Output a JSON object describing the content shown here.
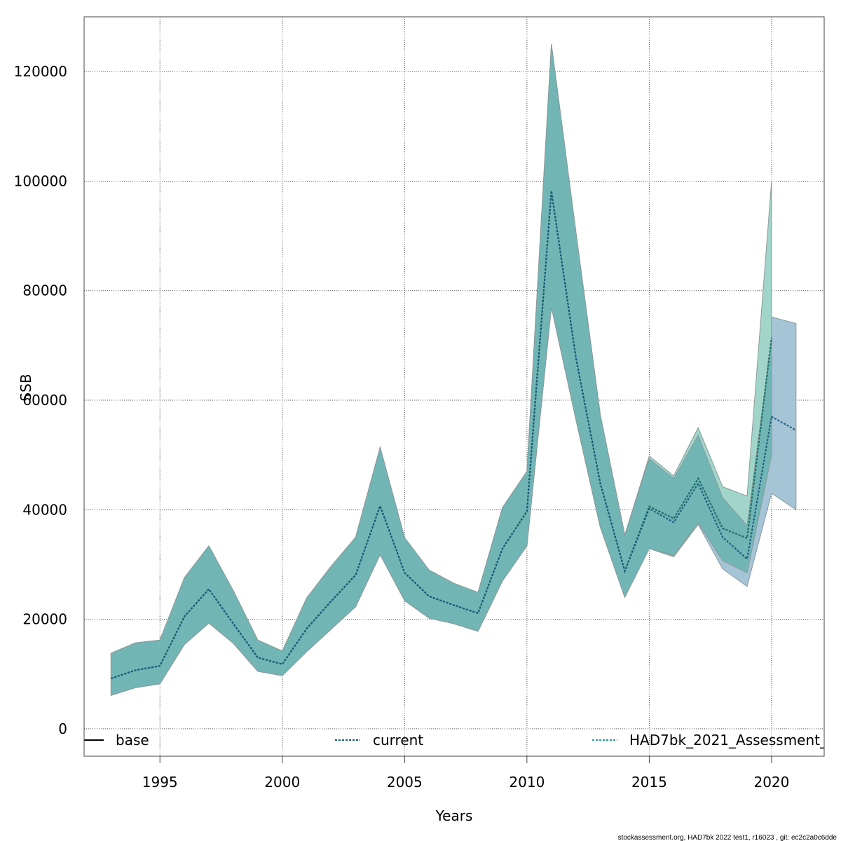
{
  "chart_data": {
    "type": "line",
    "title": "",
    "xlabel": "Years",
    "ylabel": "SSB",
    "xlim": [
      1991.9,
      2022.15
    ],
    "ylim": [
      -5000,
      130000
    ],
    "grid": true,
    "x_ticks": [
      1995,
      2000,
      2005,
      2010,
      2015,
      2020
    ],
    "y_ticks": [
      0,
      20000,
      40000,
      60000,
      80000,
      100000,
      120000
    ],
    "legend": {
      "placement": "bottom-inside",
      "entries": [
        "base",
        "current",
        "HAD7bk_2021_Assessment_"
      ]
    },
    "series": [
      {
        "name": "current",
        "line_color": "#1a5a7a",
        "band_color": "#a5c4d6",
        "years": [
          1993,
          1994,
          1995,
          1996,
          1997,
          1998,
          1999,
          2000,
          2001,
          2002,
          2003,
          2004,
          2005,
          2006,
          2007,
          2008,
          2009,
          2010,
          2011,
          2012,
          2013,
          2014,
          2015,
          2016,
          2017,
          2018,
          2019,
          2020,
          2021
        ],
        "values": [
          9200,
          10700,
          11500,
          20500,
          25500,
          19200,
          13000,
          11800,
          18300,
          23300,
          28100,
          40700,
          28500,
          24200,
          22600,
          21100,
          32900,
          39700,
          98200,
          67800,
          44800,
          28800,
          40200,
          37700,
          44800,
          35000,
          31000,
          57000,
          54500
        ],
        "lower": [
          6100,
          7500,
          8200,
          15400,
          19300,
          15600,
          10500,
          9700,
          14100,
          18200,
          22300,
          31800,
          23400,
          20200,
          19200,
          17800,
          27000,
          33400,
          77000,
          56500,
          36800,
          24000,
          32900,
          31400,
          37300,
          29200,
          26000,
          43000,
          40000
        ],
        "upper": [
          13800,
          15700,
          16200,
          27600,
          33400,
          25200,
          16200,
          14200,
          23900,
          29700,
          35000,
          51400,
          34900,
          29000,
          26600,
          24900,
          40400,
          47000,
          125000,
          90800,
          57300,
          35400,
          49000,
          45500,
          53400,
          42000,
          37000,
          75200,
          74000
        ]
      },
      {
        "name": "HAD7bk_2021_Assessment_",
        "line_color": "#1f7a72",
        "band_color": "#a1d5c9",
        "years": [
          1993,
          1994,
          1995,
          1996,
          1997,
          1998,
          1999,
          2000,
          2001,
          2002,
          2003,
          2004,
          2005,
          2006,
          2007,
          2008,
          2009,
          2010,
          2011,
          2012,
          2013,
          2014,
          2015,
          2016,
          2017,
          2018,
          2019,
          2020
        ],
        "values": [
          9200,
          10700,
          11500,
          20500,
          25500,
          19200,
          13000,
          11800,
          18300,
          23300,
          28100,
          40700,
          28500,
          24200,
          22600,
          21100,
          32900,
          39700,
          98200,
          67800,
          44800,
          28800,
          40600,
          38400,
          45700,
          36600,
          34800,
          71400
        ],
        "lower": [
          6100,
          7500,
          8200,
          15400,
          19300,
          15600,
          10500,
          9700,
          14100,
          18200,
          22300,
          31800,
          23400,
          20200,
          19200,
          17800,
          27000,
          33400,
          77000,
          56500,
          36800,
          24000,
          32900,
          31600,
          37600,
          30700,
          28500,
          50000
        ],
        "upper": [
          13800,
          15700,
          16200,
          27600,
          33400,
          25200,
          16200,
          14200,
          23900,
          29700,
          35000,
          51400,
          34900,
          29000,
          26600,
          24900,
          40400,
          47000,
          125000,
          90800,
          57300,
          35400,
          49800,
          46200,
          55000,
          44200,
          42500,
          100000
        ]
      },
      {
        "name": "base",
        "line_color": "#000000",
        "band_color": "#72b5b5",
        "years": [
          1993,
          1994,
          1995,
          1996,
          1997,
          1998,
          1999,
          2000,
          2001,
          2002,
          2003,
          2004,
          2005,
          2006,
          2007,
          2008,
          2009,
          2010,
          2011,
          2012,
          2013,
          2014,
          2015,
          2016,
          2017,
          2018,
          2019,
          2020
        ],
        "values": [
          9200,
          10700,
          11500,
          20500,
          25500,
          19200,
          13000,
          11800,
          18300,
          23300,
          28100,
          40700,
          28500,
          24200,
          22600,
          21100,
          32900,
          39700,
          98200,
          67800,
          44800,
          28800,
          40600,
          38400,
          45700,
          36600,
          34800,
          71400
        ],
        "lower": [
          6100,
          7500,
          8200,
          15400,
          19300,
          15600,
          10500,
          9700,
          14100,
          18200,
          22300,
          31800,
          23400,
          20200,
          19200,
          17800,
          27000,
          33400,
          77000,
          56500,
          36800,
          24000,
          32900,
          31600,
          37600,
          30700,
          28500,
          50000
        ],
        "upper": [
          13800,
          15700,
          16200,
          27600,
          33400,
          25200,
          16200,
          14200,
          23900,
          29700,
          35000,
          51400,
          34900,
          29000,
          26600,
          24900,
          40400,
          47000,
          125000,
          90800,
          57300,
          35400,
          49300,
          45700,
          53600,
          42200,
          37100,
          71400
        ]
      }
    ]
  },
  "footer": "stockassessment.org, HAD7bk  2022  test1, r16023 , git: ec2c2a0c6dde"
}
